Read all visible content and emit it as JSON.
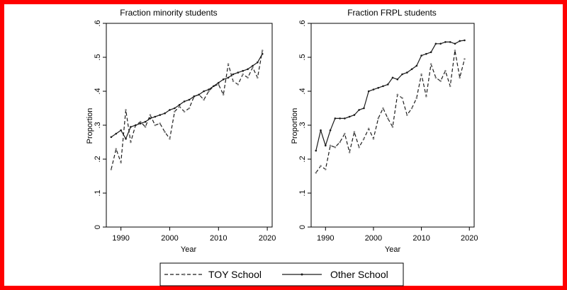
{
  "colors": {
    "frame": "#ff0000",
    "line": "#1a1a1a"
  },
  "chart_data": [
    {
      "type": "line",
      "title": "Fraction minority students",
      "xlabel": "Year",
      "ylabel": "Proportion",
      "xlim": [
        1987,
        2021
      ],
      "ylim": [
        0,
        0.6
      ],
      "xticks": [
        1990,
        2000,
        2010,
        2020
      ],
      "xtick_labels": [
        "1990",
        "2000",
        "2010",
        "2020"
      ],
      "yticks": [
        0,
        0.1,
        0.2,
        0.3,
        0.4,
        0.5,
        0.6
      ],
      "ytick_labels": [
        "0",
        ".1",
        ".2",
        ".3",
        ".4",
        ".5",
        ".6"
      ],
      "x": [
        1988,
        1989,
        1990,
        1991,
        1992,
        1993,
        1994,
        1995,
        1996,
        1997,
        1998,
        1999,
        2000,
        2001,
        2002,
        2003,
        2004,
        2005,
        2006,
        2007,
        2008,
        2009,
        2010,
        2011,
        2012,
        2013,
        2014,
        2015,
        2016,
        2017,
        2018,
        2019
      ],
      "series": [
        {
          "name": "TOY School",
          "style": "dashed",
          "values": [
            0.17,
            0.23,
            0.19,
            0.345,
            0.25,
            0.3,
            0.31,
            0.295,
            0.33,
            0.3,
            0.305,
            0.28,
            0.26,
            0.34,
            0.355,
            0.34,
            0.35,
            0.385,
            0.39,
            0.375,
            0.4,
            0.415,
            0.42,
            0.39,
            0.48,
            0.43,
            0.42,
            0.45,
            0.44,
            0.47,
            0.44,
            0.52
          ]
        },
        {
          "name": "Other School",
          "style": "solid",
          "values": [
            0.265,
            0.275,
            0.285,
            0.26,
            0.295,
            0.3,
            0.305,
            0.31,
            0.32,
            0.325,
            0.33,
            0.335,
            0.345,
            0.35,
            0.36,
            0.37,
            0.375,
            0.385,
            0.39,
            0.4,
            0.405,
            0.415,
            0.425,
            0.435,
            0.44,
            0.45,
            0.455,
            0.46,
            0.465,
            0.475,
            0.485,
            0.51
          ]
        }
      ]
    },
    {
      "type": "line",
      "title": "Fraction FRPL students",
      "xlabel": "Year",
      "ylabel": "Proportion",
      "xlim": [
        1987,
        2021
      ],
      "ylim": [
        0,
        0.6
      ],
      "xticks": [
        1990,
        2000,
        2010,
        2020
      ],
      "xtick_labels": [
        "1990",
        "2000",
        "2010",
        "2020"
      ],
      "yticks": [
        0,
        0.1,
        0.2,
        0.3,
        0.4,
        0.5,
        0.6
      ],
      "ytick_labels": [
        "0",
        ".1",
        ".2",
        ".3",
        ".4",
        ".5",
        ".6"
      ],
      "x": [
        1988,
        1989,
        1990,
        1991,
        1992,
        1993,
        1994,
        1995,
        1996,
        1997,
        1998,
        1999,
        2000,
        2001,
        2002,
        2003,
        2004,
        2005,
        2006,
        2007,
        2008,
        2009,
        2010,
        2011,
        2012,
        2013,
        2014,
        2015,
        2016,
        2017,
        2018,
        2019
      ],
      "series": [
        {
          "name": "TOY School",
          "style": "dashed",
          "values": [
            0.16,
            0.18,
            0.17,
            0.24,
            0.235,
            0.25,
            0.275,
            0.22,
            0.28,
            0.235,
            0.26,
            0.29,
            0.26,
            0.32,
            0.35,
            0.32,
            0.295,
            0.39,
            0.38,
            0.33,
            0.35,
            0.38,
            0.45,
            0.385,
            0.48,
            0.44,
            0.43,
            0.46,
            0.415,
            0.52,
            0.44,
            0.495
          ]
        },
        {
          "name": "Other School",
          "style": "solid",
          "values": [
            0.225,
            0.285,
            0.24,
            0.285,
            0.32,
            0.32,
            0.32,
            0.325,
            0.33,
            0.345,
            0.35,
            0.4,
            0.405,
            0.41,
            0.415,
            0.42,
            0.44,
            0.435,
            0.45,
            0.455,
            0.465,
            0.475,
            0.505,
            0.51,
            0.515,
            0.54,
            0.54,
            0.545,
            0.545,
            0.54,
            0.548,
            0.55
          ]
        }
      ]
    }
  ],
  "legend": {
    "items": [
      {
        "label": "TOY School",
        "style": "dashed"
      },
      {
        "label": "Other School",
        "style": "solid"
      }
    ]
  }
}
